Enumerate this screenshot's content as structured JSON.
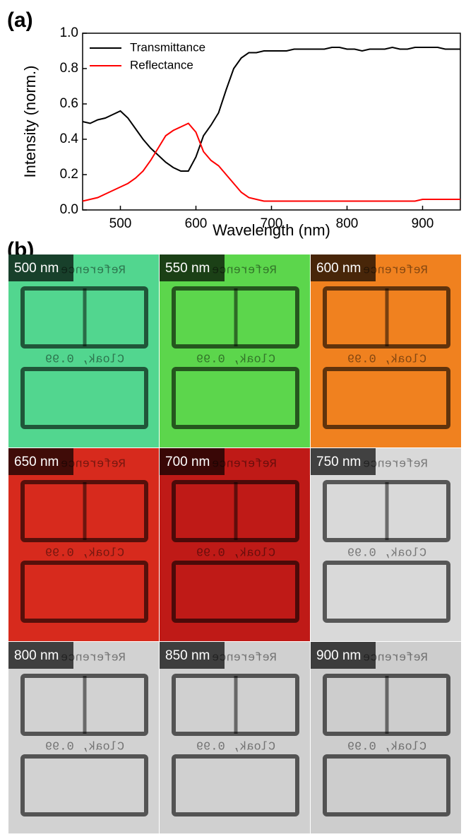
{
  "panel_labels": [
    "(a)",
    "(b)"
  ],
  "chart_data": {
    "type": "line",
    "x_label": "Wavelength (nm)",
    "y_label": "Intensity (norm.)",
    "x": [
      450,
      460,
      470,
      480,
      490,
      500,
      510,
      520,
      530,
      540,
      550,
      560,
      570,
      580,
      590,
      600,
      610,
      620,
      630,
      640,
      650,
      660,
      670,
      680,
      690,
      700,
      710,
      720,
      730,
      740,
      750,
      760,
      770,
      780,
      790,
      800,
      810,
      820,
      830,
      840,
      850,
      860,
      870,
      880,
      890,
      900,
      910,
      920,
      930,
      940,
      950
    ],
    "series": [
      {
        "name": "Transmittance",
        "color": "#000000",
        "values": [
          0.5,
          0.49,
          0.51,
          0.52,
          0.54,
          0.56,
          0.52,
          0.46,
          0.4,
          0.35,
          0.31,
          0.27,
          0.24,
          0.22,
          0.22,
          0.3,
          0.42,
          0.48,
          0.55,
          0.68,
          0.8,
          0.86,
          0.89,
          0.89,
          0.9,
          0.9,
          0.9,
          0.9,
          0.91,
          0.91,
          0.91,
          0.91,
          0.91,
          0.92,
          0.92,
          0.91,
          0.91,
          0.9,
          0.91,
          0.91,
          0.91,
          0.92,
          0.91,
          0.91,
          0.92,
          0.92,
          0.92,
          0.92,
          0.91,
          0.91,
          0.91
        ]
      },
      {
        "name": "Reflectance",
        "color": "#ff0000",
        "values": [
          0.05,
          0.06,
          0.07,
          0.09,
          0.11,
          0.13,
          0.15,
          0.18,
          0.22,
          0.28,
          0.35,
          0.42,
          0.45,
          0.47,
          0.49,
          0.44,
          0.33,
          0.28,
          0.25,
          0.2,
          0.15,
          0.1,
          0.07,
          0.06,
          0.05,
          0.05,
          0.05,
          0.05,
          0.05,
          0.05,
          0.05,
          0.05,
          0.05,
          0.05,
          0.05,
          0.05,
          0.05,
          0.05,
          0.05,
          0.05,
          0.05,
          0.05,
          0.05,
          0.05,
          0.05,
          0.06,
          0.06,
          0.06,
          0.06,
          0.06,
          0.06
        ]
      }
    ],
    "xlim": [
      450,
      950
    ],
    "xticks": [
      500,
      600,
      700,
      800,
      900
    ],
    "ylim": [
      0,
      1
    ],
    "yticks": [
      {
        "value": 0,
        "label": "0.0"
      },
      0.2,
      0.4,
      0.6,
      0.8,
      {
        "value": 1,
        "label": "1.0"
      }
    ],
    "legend": "upper-left"
  },
  "photo_texts": {
    "reference": "Reference",
    "cloak": "Cloak, 0.99"
  },
  "images": [
    {
      "label": "500 nm",
      "color": "#52d68f"
    },
    {
      "label": "550 nm",
      "color": "#5cd64c"
    },
    {
      "label": "600 nm",
      "color": "#f0811f"
    },
    {
      "label": "650 nm",
      "color": "#d72a1d"
    },
    {
      "label": "700 nm",
      "color": "#bf1a17"
    },
    {
      "label": "750 nm",
      "color": "#d9d9d9"
    },
    {
      "label": "800 nm",
      "color": "#d2d2d2"
    },
    {
      "label": "850 nm",
      "color": "#d0d0d0"
    },
    {
      "label": "900 nm",
      "color": "#cdcdcd"
    }
  ]
}
